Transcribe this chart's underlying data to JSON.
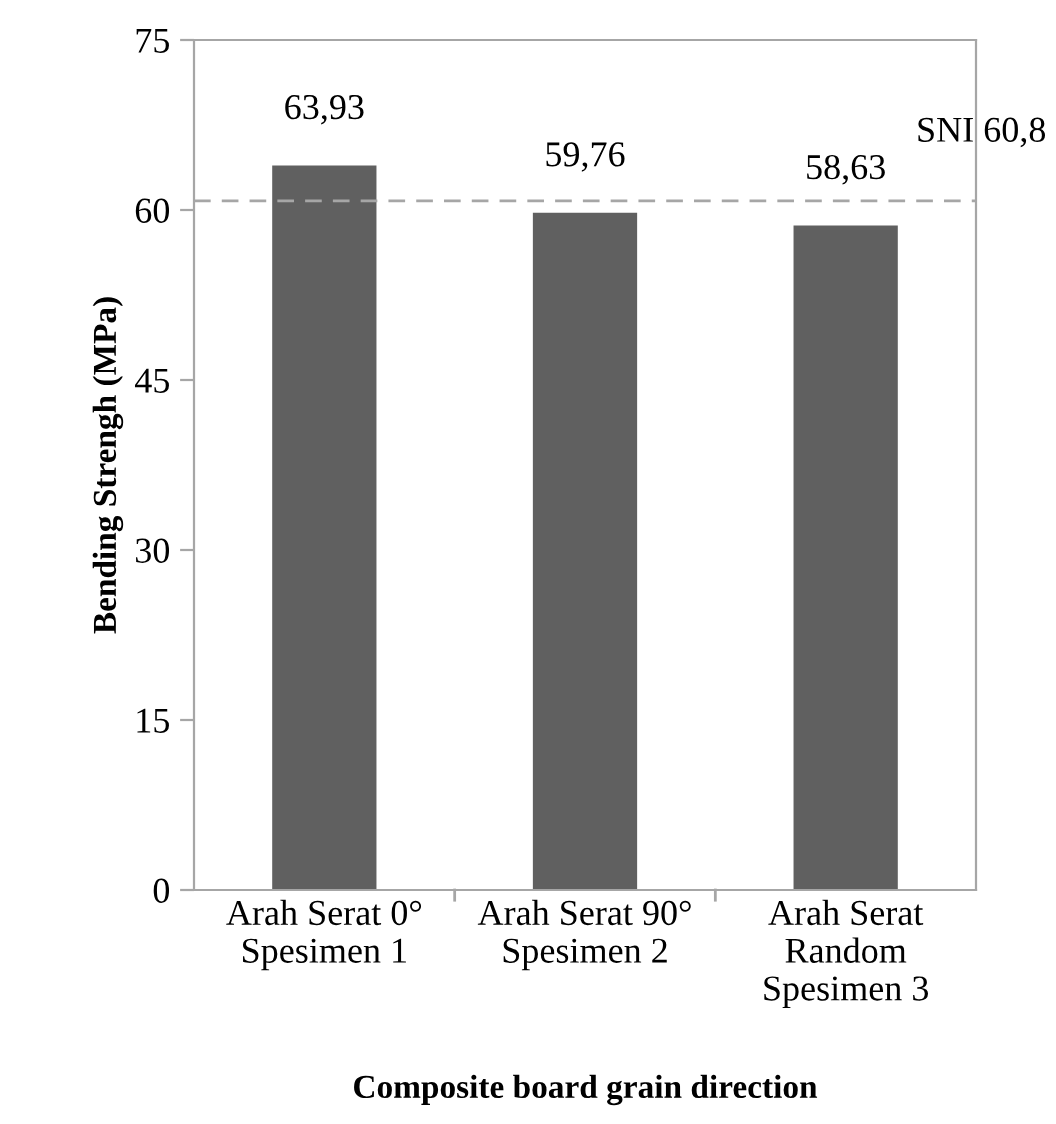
{
  "chart_data": {
    "type": "bar",
    "xlabel": "Composite board grain direction",
    "ylabel": "Bending Strengh (MPa)",
    "categories": [
      "Arah Serat 0°\nSpesimen 1",
      "Arah Serat 90°\nSpesimen 2",
      "Arah Serat\nRandom\nSpesimen 3"
    ],
    "values": [
      63.93,
      59.76,
      58.63
    ],
    "value_labels": [
      "63,93",
      "59,76",
      "58,63"
    ],
    "color": "#606060",
    "ylim": [
      0,
      75
    ],
    "yticks": [
      0,
      15,
      30,
      45,
      60,
      75
    ],
    "grid": false,
    "legend": false,
    "ref_lines": [
      {
        "axis": "y",
        "value": 60.8,
        "label": "SNI 60,8",
        "color": "#a6a6a6",
        "line_style": "dashed"
      }
    ]
  }
}
